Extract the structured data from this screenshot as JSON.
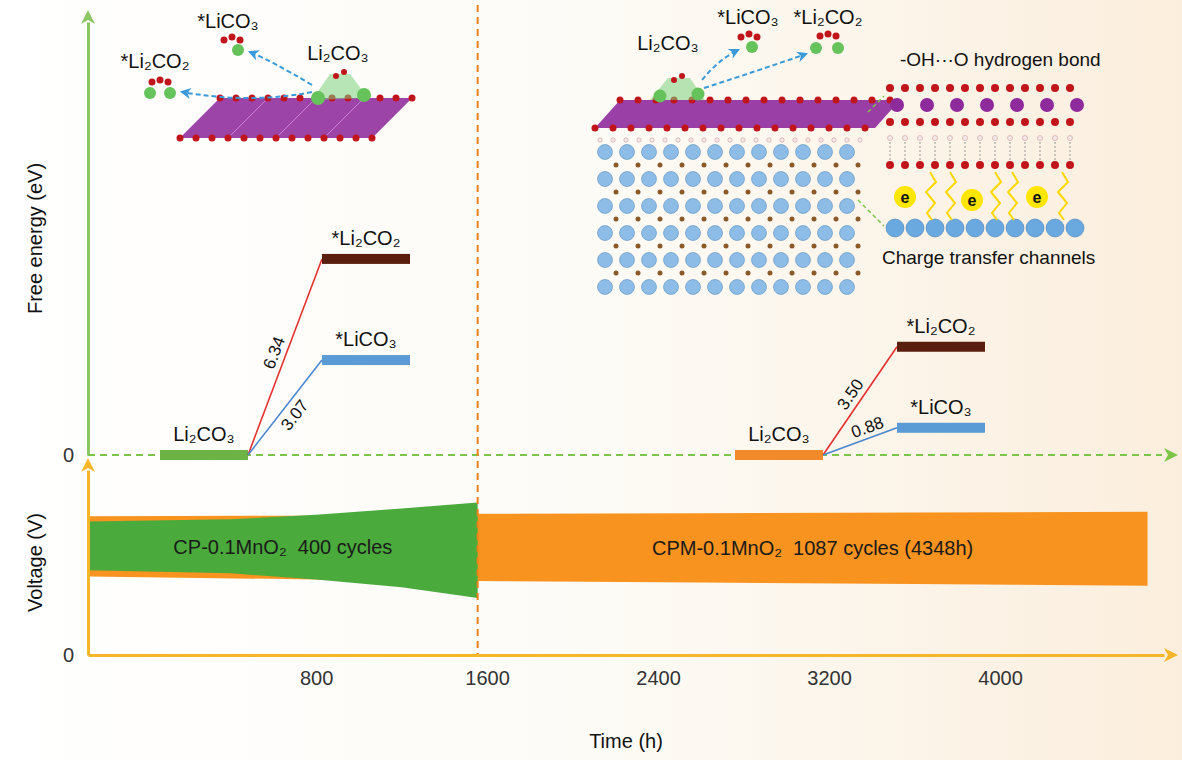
{
  "chart_data": [
    {
      "type": "energy_diagram",
      "y_label": "Free energy (eV)",
      "ylim": [
        0,
        14
      ],
      "yticks": [
        0
      ],
      "tick_labels": "y",
      "data_labels": true,
      "groups": [
        {
          "reactant": {
            "label": "Li₂CO₃",
            "value": 0,
            "color": "#6ab344"
          },
          "products": {
            "labels": [
              "*Li₂CO₂",
              "*LiCO₃"
            ],
            "values": [
              6.34,
              3.07
            ],
            "value_labels": [
              "6.34",
              "3.07"
            ],
            "colors": [
              "#5a1e0e",
              "#5b9bd5"
            ]
          }
        },
        {
          "reactant": {
            "label": "Li₂CO₃",
            "value": 0,
            "color": "#f08a2a"
          },
          "products": {
            "labels": [
              "*Li₂CO₂",
              "*LiCO₃"
            ],
            "values": [
              3.5,
              0.88
            ],
            "value_labels": [
              "3.50",
              "0.88"
            ],
            "colors": [
              "#5a1e0e",
              "#5b9bd5"
            ]
          }
        }
      ],
      "annotations": {
        "left": {
          "species": [
            "*Li₂CO₂",
            "*LiCO₃",
            "Li₂CO₃"
          ]
        },
        "right": {
          "species": [
            "Li₂CO₃",
            "*LiCO₃",
            "*Li₂CO₂"
          ],
          "bond": "-OH···O hydrogen bond",
          "channels": "Charge transfer channels",
          "electrons": [
            "e",
            "e",
            "e"
          ]
        }
      }
    },
    {
      "type": "area",
      "x_label": "Time (h)",
      "y_label": "Voltage (V)",
      "xlim": [
        -267,
        4767
      ],
      "xticks": [
        800,
        1600,
        2400,
        3200,
        4000
      ],
      "ylim": [
        0,
        6
      ],
      "yticks": [
        0
      ],
      "series": [
        {
          "name": "CP-0.1MnO₂  400 cycles",
          "color": "#4aaa3c",
          "x": [
            -267,
            400,
            800,
            1200,
            1556
          ],
          "upper": [
            4.33,
            4.4,
            4.55,
            4.75,
            4.95
          ],
          "lower": [
            2.75,
            2.65,
            2.45,
            2.2,
            1.85
          ]
        },
        {
          "name": "CPM-0.1MnO₂  1087 cycles (4348h)",
          "color": "#f7931e",
          "x": [
            -267,
            800,
            1556,
            2600,
            3600,
            4690
          ],
          "upper": [
            4.5,
            4.52,
            4.58,
            4.6,
            4.62,
            4.65
          ],
          "lower": [
            2.55,
            2.45,
            2.4,
            2.35,
            2.3,
            2.25
          ]
        }
      ]
    }
  ]
}
